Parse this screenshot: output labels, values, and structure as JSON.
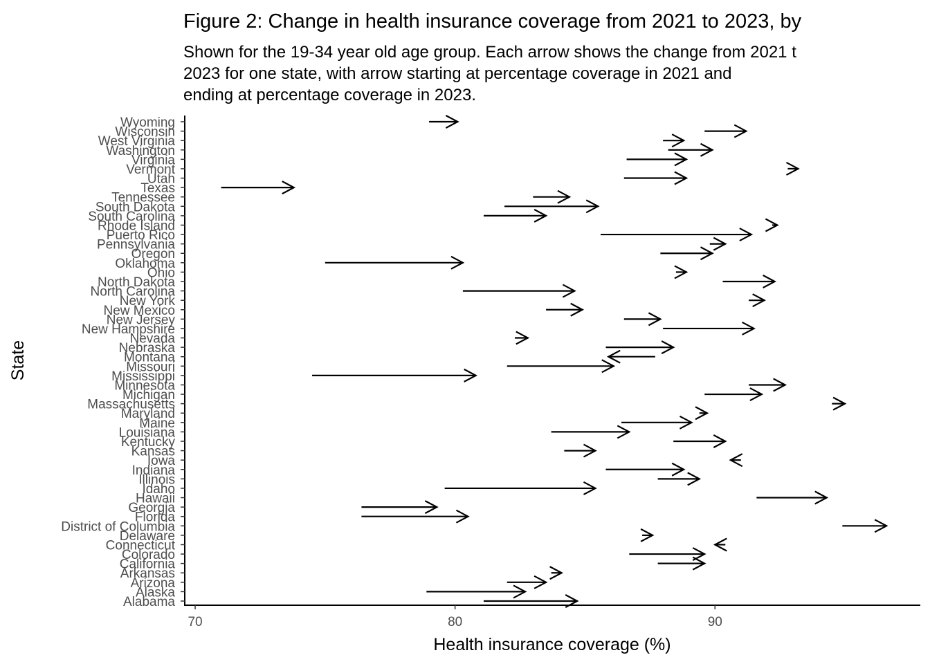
{
  "chart_data": {
    "type": "arrow",
    "title": "Figure 2: Change in health insurance coverage from 2021 to 2023, by",
    "subtitle_lines": [
      "Shown for the 19-34 year old age group. Each arrow shows the change from 2021 t",
      "2023 for one state, with arrow starting at percentage coverage in 2021 and",
      "ending at percentage coverage in 2023."
    ],
    "xlabel": "Health insurance coverage (%)",
    "ylabel": "State",
    "xlim": [
      69.6,
      97.9
    ],
    "xticks": [
      70,
      80,
      90
    ],
    "xtick_labels": [
      "70",
      "80",
      "90"
    ],
    "states": [
      "Alabama",
      "Alaska",
      "Arizona",
      "Arkansas",
      "California",
      "Colorado",
      "Connecticut",
      "Delaware",
      "District of Columbia",
      "Florida",
      "Georgia",
      "Hawaii",
      "Idaho",
      "Illinois",
      "Indiana",
      "Iowa",
      "Kansas",
      "Kentucky",
      "Louisiana",
      "Maine",
      "Maryland",
      "Massachusetts",
      "Michigan",
      "Minnesota",
      "Mississippi",
      "Missouri",
      "Montana",
      "Nebraska",
      "Nevada",
      "New Hampshire",
      "New Jersey",
      "New Mexico",
      "New York",
      "North Carolina",
      "North Dakota",
      "Ohio",
      "Oklahoma",
      "Oregon",
      "Pennsylvania",
      "Puerto Rico",
      "Rhode Island",
      "South Carolina",
      "South Dakota",
      "Tennessee",
      "Texas",
      "Utah",
      "Vermont",
      "Virginia",
      "Washington",
      "West Virginia",
      "Wisconsin",
      "Wyoming"
    ],
    "coverage_2021": [
      81.1,
      78.9,
      82.0,
      83.7,
      87.8,
      86.7,
      90.4,
      87.2,
      94.9,
      76.4,
      76.4,
      91.6,
      79.6,
      87.8,
      85.8,
      91.0,
      84.2,
      88.4,
      83.7,
      86.4,
      89.4,
      94.5,
      89.6,
      91.3,
      74.5,
      82.0,
      87.7,
      85.8,
      82.3,
      88.0,
      86.5,
      83.5,
      91.3,
      80.3,
      90.3,
      88.5,
      75.0,
      87.9,
      89.8,
      85.6,
      92.2,
      81.1,
      81.9,
      83.0,
      71.0,
      86.5,
      92.8,
      86.6,
      88.2,
      88.0,
      89.6,
      79.0
    ],
    "coverage_2023": [
      84.7,
      82.7,
      83.5,
      84.1,
      89.6,
      89.6,
      90.0,
      87.6,
      96.6,
      80.5,
      79.3,
      94.3,
      85.4,
      89.4,
      88.8,
      90.6,
      85.4,
      90.4,
      86.7,
      89.1,
      89.7,
      95.0,
      91.8,
      92.7,
      80.8,
      86.1,
      85.9,
      88.4,
      82.8,
      91.5,
      87.9,
      84.9,
      91.9,
      84.6,
      92.3,
      88.9,
      80.3,
      89.9,
      90.4,
      91.4,
      92.4,
      83.5,
      85.5,
      84.4,
      73.8,
      88.9,
      93.2,
      88.9,
      89.9,
      88.8,
      91.2,
      80.1
    ]
  }
}
